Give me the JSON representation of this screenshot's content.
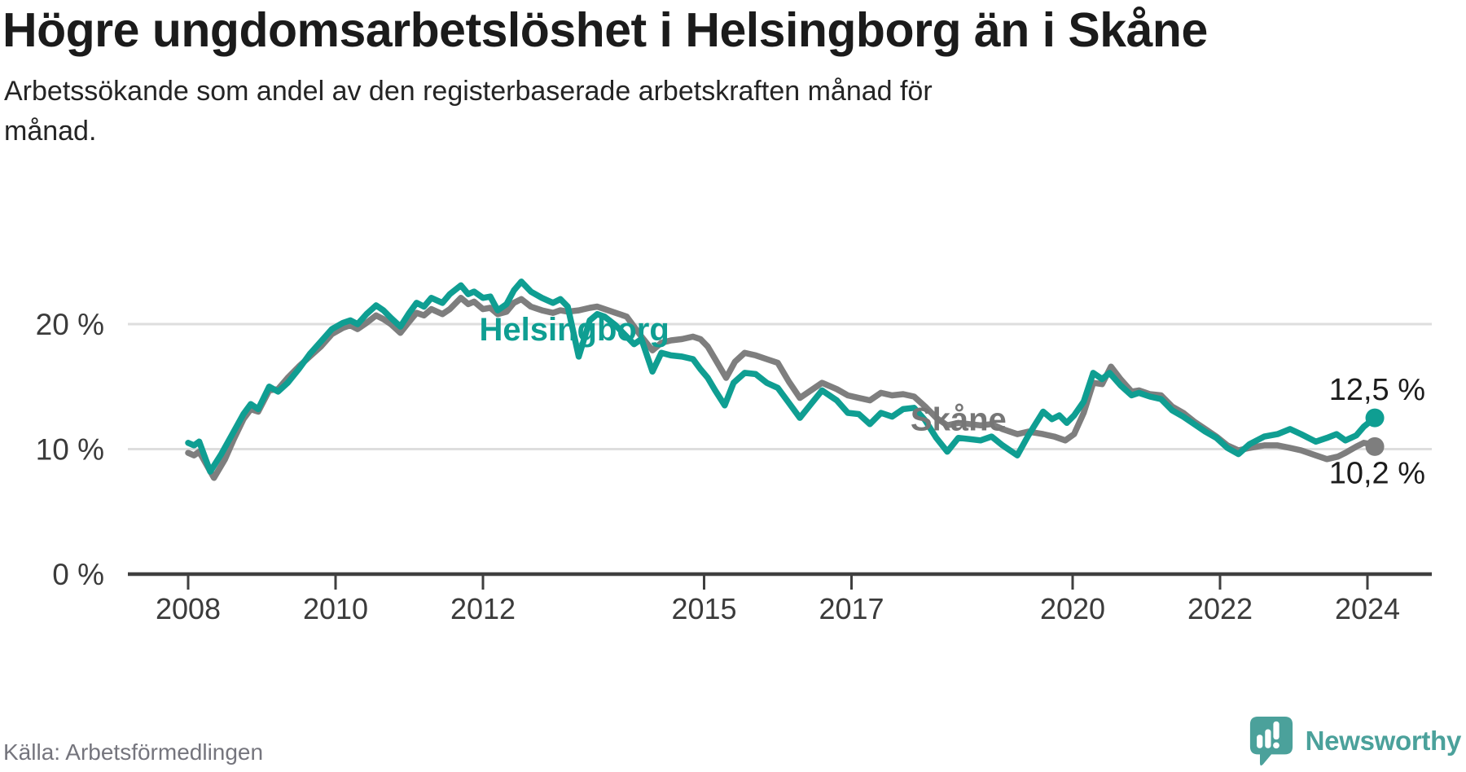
{
  "page": {
    "background": "#ffffff"
  },
  "chart_data": {
    "type": "line",
    "title": "Högre ungdomsarbetslöshet i Helsingborg än i Skåne",
    "subtitle": "Arbetssökande som andel av den registerbaserade arbetskraften månad för månad.",
    "subtitle_lines": [
      "Arbetssökande som andel av den registerbaserade arbetskraften månad för",
      "månad."
    ],
    "xlabel": "",
    "ylabel": "",
    "xlim": [
      2008,
      2024.35
    ],
    "ylim": [
      0,
      25.5
    ],
    "grid": "horizontal",
    "legend_position": "inline-labels",
    "grid_color": "#dedede",
    "axis_color": "#3f3f3f",
    "tick_label_color": "#3b3b3b",
    "value_label_color": "#1c1c1c",
    "x_axis": {
      "ticks": [
        {
          "year": 2008,
          "label": "2008"
        },
        {
          "year": 2010,
          "label": "2010"
        },
        {
          "year": 2012,
          "label": "2012"
        },
        {
          "year": 2015,
          "label": "2015"
        },
        {
          "year": 2017,
          "label": "2017"
        },
        {
          "year": 2020,
          "label": "2020"
        },
        {
          "year": 2022,
          "label": "2022"
        },
        {
          "year": 2024,
          "label": "2024"
        }
      ]
    },
    "y_axis": {
      "gridlines": [
        {
          "value": 20,
          "label": "20 %"
        },
        {
          "value": 10,
          "label": "10 %"
        },
        {
          "value": 0,
          "label": "0 %"
        }
      ]
    },
    "series": [
      {
        "name": "Helsingborg",
        "color": "#0f9e92",
        "label_color": "#0f9e92",
        "end_label": "12,5 %",
        "label_at": [
          2011.95,
          18.7
        ],
        "points": [
          [
            2008.0,
            10.5
          ],
          [
            2008.08,
            10.3
          ],
          [
            2008.15,
            10.6
          ],
          [
            2008.3,
            8.2
          ],
          [
            2008.45,
            9.6
          ],
          [
            2008.6,
            11.2
          ],
          [
            2008.75,
            12.8
          ],
          [
            2008.85,
            13.6
          ],
          [
            2008.95,
            13.2
          ],
          [
            2009.1,
            15.0
          ],
          [
            2009.22,
            14.6
          ],
          [
            2009.35,
            15.3
          ],
          [
            2009.5,
            16.4
          ],
          [
            2009.65,
            17.6
          ],
          [
            2009.8,
            18.6
          ],
          [
            2009.95,
            19.6
          ],
          [
            2010.1,
            20.1
          ],
          [
            2010.2,
            20.3
          ],
          [
            2010.3,
            20.0
          ],
          [
            2010.42,
            20.8
          ],
          [
            2010.55,
            21.5
          ],
          [
            2010.65,
            21.1
          ],
          [
            2010.75,
            20.5
          ],
          [
            2010.88,
            19.8
          ],
          [
            2011.0,
            20.9
          ],
          [
            2011.1,
            21.7
          ],
          [
            2011.2,
            21.4
          ],
          [
            2011.3,
            22.1
          ],
          [
            2011.45,
            21.7
          ],
          [
            2011.55,
            22.4
          ],
          [
            2011.7,
            23.1
          ],
          [
            2011.8,
            22.4
          ],
          [
            2011.88,
            22.6
          ],
          [
            2012.0,
            22.1
          ],
          [
            2012.1,
            22.2
          ],
          [
            2012.2,
            21.1
          ],
          [
            2012.32,
            21.6
          ],
          [
            2012.42,
            22.7
          ],
          [
            2012.52,
            23.4
          ],
          [
            2012.65,
            22.6
          ],
          [
            2012.8,
            22.1
          ],
          [
            2012.95,
            21.7
          ],
          [
            2013.05,
            22.0
          ],
          [
            2013.15,
            21.4
          ],
          [
            2013.3,
            17.4
          ],
          [
            2013.45,
            20.3
          ],
          [
            2013.55,
            20.8
          ],
          [
            2013.65,
            20.6
          ],
          [
            2013.8,
            19.9
          ],
          [
            2013.95,
            19.0
          ],
          [
            2014.05,
            18.4
          ],
          [
            2014.15,
            18.8
          ],
          [
            2014.3,
            16.2
          ],
          [
            2014.42,
            17.7
          ],
          [
            2014.55,
            17.5
          ],
          [
            2014.7,
            17.4
          ],
          [
            2014.85,
            17.2
          ],
          [
            2014.95,
            16.4
          ],
          [
            2015.05,
            15.7
          ],
          [
            2015.15,
            14.7
          ],
          [
            2015.28,
            13.5
          ],
          [
            2015.4,
            15.3
          ],
          [
            2015.55,
            16.1
          ],
          [
            2015.7,
            16.0
          ],
          [
            2015.85,
            15.3
          ],
          [
            2016.0,
            14.9
          ],
          [
            2016.15,
            13.7
          ],
          [
            2016.3,
            12.5
          ],
          [
            2016.45,
            13.6
          ],
          [
            2016.6,
            14.7
          ],
          [
            2016.8,
            13.9
          ],
          [
            2016.95,
            12.9
          ],
          [
            2017.1,
            12.8
          ],
          [
            2017.25,
            12.0
          ],
          [
            2017.4,
            12.9
          ],
          [
            2017.55,
            12.6
          ],
          [
            2017.7,
            13.2
          ],
          [
            2017.85,
            13.3
          ],
          [
            2018.0,
            12.3
          ],
          [
            2018.15,
            10.9
          ],
          [
            2018.3,
            9.8
          ],
          [
            2018.45,
            10.9
          ],
          [
            2018.6,
            10.8
          ],
          [
            2018.75,
            10.7
          ],
          [
            2018.9,
            11.0
          ],
          [
            2019.05,
            10.3
          ],
          [
            2019.25,
            9.5
          ],
          [
            2019.4,
            11.1
          ],
          [
            2019.6,
            13.0
          ],
          [
            2019.72,
            12.4
          ],
          [
            2019.82,
            12.7
          ],
          [
            2019.92,
            12.1
          ],
          [
            2020.02,
            12.7
          ],
          [
            2020.15,
            13.8
          ],
          [
            2020.28,
            16.1
          ],
          [
            2020.4,
            15.6
          ],
          [
            2020.5,
            16.1
          ],
          [
            2020.65,
            15.1
          ],
          [
            2020.8,
            14.3
          ],
          [
            2020.9,
            14.5
          ],
          [
            2021.05,
            14.2
          ],
          [
            2021.2,
            14.0
          ],
          [
            2021.35,
            13.1
          ],
          [
            2021.5,
            12.6
          ],
          [
            2021.65,
            12.0
          ],
          [
            2021.8,
            11.4
          ],
          [
            2021.95,
            10.9
          ],
          [
            2022.1,
            10.1
          ],
          [
            2022.25,
            9.6
          ],
          [
            2022.4,
            10.4
          ],
          [
            2022.6,
            11.0
          ],
          [
            2022.78,
            11.2
          ],
          [
            2022.95,
            11.6
          ],
          [
            2023.1,
            11.2
          ],
          [
            2023.3,
            10.6
          ],
          [
            2023.45,
            10.9
          ],
          [
            2023.58,
            11.2
          ],
          [
            2023.7,
            10.7
          ],
          [
            2023.85,
            11.1
          ],
          [
            2023.95,
            11.8
          ],
          [
            2024.1,
            12.5
          ]
        ]
      },
      {
        "name": "Skåne",
        "color": "#7e7e7e",
        "label_color": "#767676",
        "end_label": "10,2 %",
        "label_at": [
          2017.8,
          11.5
        ],
        "points": [
          [
            2008.0,
            9.7
          ],
          [
            2008.08,
            9.5
          ],
          [
            2008.15,
            9.8
          ],
          [
            2008.35,
            7.7
          ],
          [
            2008.5,
            9.2
          ],
          [
            2008.62,
            10.8
          ],
          [
            2008.75,
            12.4
          ],
          [
            2008.85,
            13.2
          ],
          [
            2008.95,
            13.0
          ],
          [
            2009.1,
            14.7
          ],
          [
            2009.22,
            14.8
          ],
          [
            2009.35,
            15.7
          ],
          [
            2009.5,
            16.6
          ],
          [
            2009.65,
            17.4
          ],
          [
            2009.8,
            18.2
          ],
          [
            2009.95,
            19.2
          ],
          [
            2010.1,
            19.7
          ],
          [
            2010.2,
            19.9
          ],
          [
            2010.3,
            19.6
          ],
          [
            2010.42,
            20.1
          ],
          [
            2010.55,
            20.7
          ],
          [
            2010.65,
            20.4
          ],
          [
            2010.75,
            20.0
          ],
          [
            2010.88,
            19.3
          ],
          [
            2011.0,
            20.2
          ],
          [
            2011.1,
            20.9
          ],
          [
            2011.2,
            20.7
          ],
          [
            2011.3,
            21.2
          ],
          [
            2011.45,
            20.8
          ],
          [
            2011.55,
            21.2
          ],
          [
            2011.7,
            22.1
          ],
          [
            2011.8,
            21.6
          ],
          [
            2011.88,
            21.8
          ],
          [
            2012.0,
            21.2
          ],
          [
            2012.1,
            21.3
          ],
          [
            2012.2,
            20.8
          ],
          [
            2012.32,
            21.0
          ],
          [
            2012.42,
            21.7
          ],
          [
            2012.52,
            22.0
          ],
          [
            2012.65,
            21.4
          ],
          [
            2012.8,
            21.1
          ],
          [
            2012.95,
            20.9
          ],
          [
            2013.05,
            21.1
          ],
          [
            2013.15,
            21.0
          ],
          [
            2013.3,
            21.1
          ],
          [
            2013.45,
            21.3
          ],
          [
            2013.55,
            21.4
          ],
          [
            2013.65,
            21.2
          ],
          [
            2013.8,
            20.9
          ],
          [
            2013.95,
            20.6
          ],
          [
            2014.05,
            19.8
          ],
          [
            2014.15,
            19.0
          ],
          [
            2014.3,
            17.9
          ],
          [
            2014.42,
            18.5
          ],
          [
            2014.55,
            18.7
          ],
          [
            2014.7,
            18.8
          ],
          [
            2014.85,
            19.0
          ],
          [
            2014.95,
            18.8
          ],
          [
            2015.05,
            18.2
          ],
          [
            2015.15,
            17.2
          ],
          [
            2015.3,
            15.7
          ],
          [
            2015.42,
            17.0
          ],
          [
            2015.55,
            17.7
          ],
          [
            2015.7,
            17.5
          ],
          [
            2015.85,
            17.2
          ],
          [
            2016.0,
            16.9
          ],
          [
            2016.15,
            15.4
          ],
          [
            2016.3,
            14.1
          ],
          [
            2016.45,
            14.7
          ],
          [
            2016.6,
            15.3
          ],
          [
            2016.8,
            14.8
          ],
          [
            2016.95,
            14.3
          ],
          [
            2017.1,
            14.1
          ],
          [
            2017.25,
            13.9
          ],
          [
            2017.4,
            14.5
          ],
          [
            2017.55,
            14.3
          ],
          [
            2017.7,
            14.4
          ],
          [
            2017.85,
            14.2
          ],
          [
            2018.0,
            13.4
          ],
          [
            2018.15,
            12.5
          ],
          [
            2018.3,
            11.9
          ],
          [
            2018.45,
            12.1
          ],
          [
            2018.6,
            12.0
          ],
          [
            2018.75,
            11.9
          ],
          [
            2018.9,
            12.0
          ],
          [
            2019.05,
            11.6
          ],
          [
            2019.25,
            11.2
          ],
          [
            2019.4,
            11.4
          ],
          [
            2019.6,
            11.2
          ],
          [
            2019.75,
            11.0
          ],
          [
            2019.9,
            10.7
          ],
          [
            2020.02,
            11.2
          ],
          [
            2020.15,
            12.9
          ],
          [
            2020.28,
            15.3
          ],
          [
            2020.4,
            15.2
          ],
          [
            2020.52,
            16.6
          ],
          [
            2020.65,
            15.6
          ],
          [
            2020.8,
            14.6
          ],
          [
            2020.9,
            14.7
          ],
          [
            2021.05,
            14.4
          ],
          [
            2021.2,
            14.3
          ],
          [
            2021.35,
            13.4
          ],
          [
            2021.5,
            12.9
          ],
          [
            2021.65,
            12.2
          ],
          [
            2021.8,
            11.6
          ],
          [
            2021.95,
            11.0
          ],
          [
            2022.1,
            10.3
          ],
          [
            2022.25,
            9.9
          ],
          [
            2022.4,
            10.1
          ],
          [
            2022.6,
            10.3
          ],
          [
            2022.78,
            10.3
          ],
          [
            2022.95,
            10.1
          ],
          [
            2023.1,
            9.9
          ],
          [
            2023.3,
            9.5
          ],
          [
            2023.45,
            9.2
          ],
          [
            2023.6,
            9.4
          ],
          [
            2023.7,
            9.7
          ],
          [
            2023.85,
            10.2
          ],
          [
            2023.95,
            10.5
          ],
          [
            2024.05,
            10.4
          ],
          [
            2024.1,
            10.2
          ]
        ]
      }
    ]
  },
  "footer": {
    "source": "Källa: Arbetsförmedlingen",
    "brand": "Newsworthy",
    "brand_color": "#4ba19b"
  }
}
